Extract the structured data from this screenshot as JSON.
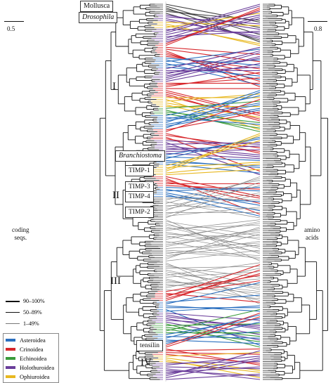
{
  "figure": {
    "left_scale_label": "0.5",
    "right_scale_label": "0.8",
    "left_axis_label": "coding\nseqs.",
    "right_axis_label": "amino\nacids",
    "box_labels": {
      "mollusca": "Mollusca",
      "drosophila": "Drosophila",
      "branchiostoma": "Branchiostoma",
      "timp1": "TIMP-1",
      "timp3": "TIMP-3",
      "timp4": "TIMP-4",
      "timp2": "TIMP-2",
      "tensilin": "tensilin"
    },
    "clades": {
      "I": "I",
      "II": "II",
      "III": "III",
      "IV": "IV"
    },
    "support_legend": [
      {
        "label": "90–100%",
        "weight": "thick"
      },
      {
        "label": "50–89%",
        "weight": "medium"
      },
      {
        "label": "1–49%",
        "weight": "thin"
      }
    ],
    "taxa_legend": [
      {
        "label": "Asteroidea",
        "color": "#2a6fbf"
      },
      {
        "label": "Crinoidea",
        "color": "#d7262b"
      },
      {
        "label": "Echinoidea",
        "color": "#3a9a3a"
      },
      {
        "label": "Holothuroidea",
        "color": "#6a3d9a"
      },
      {
        "label": "Ophiuroidea",
        "color": "#e8b820"
      }
    ],
    "connector_gray": "#8a8a8a"
  }
}
